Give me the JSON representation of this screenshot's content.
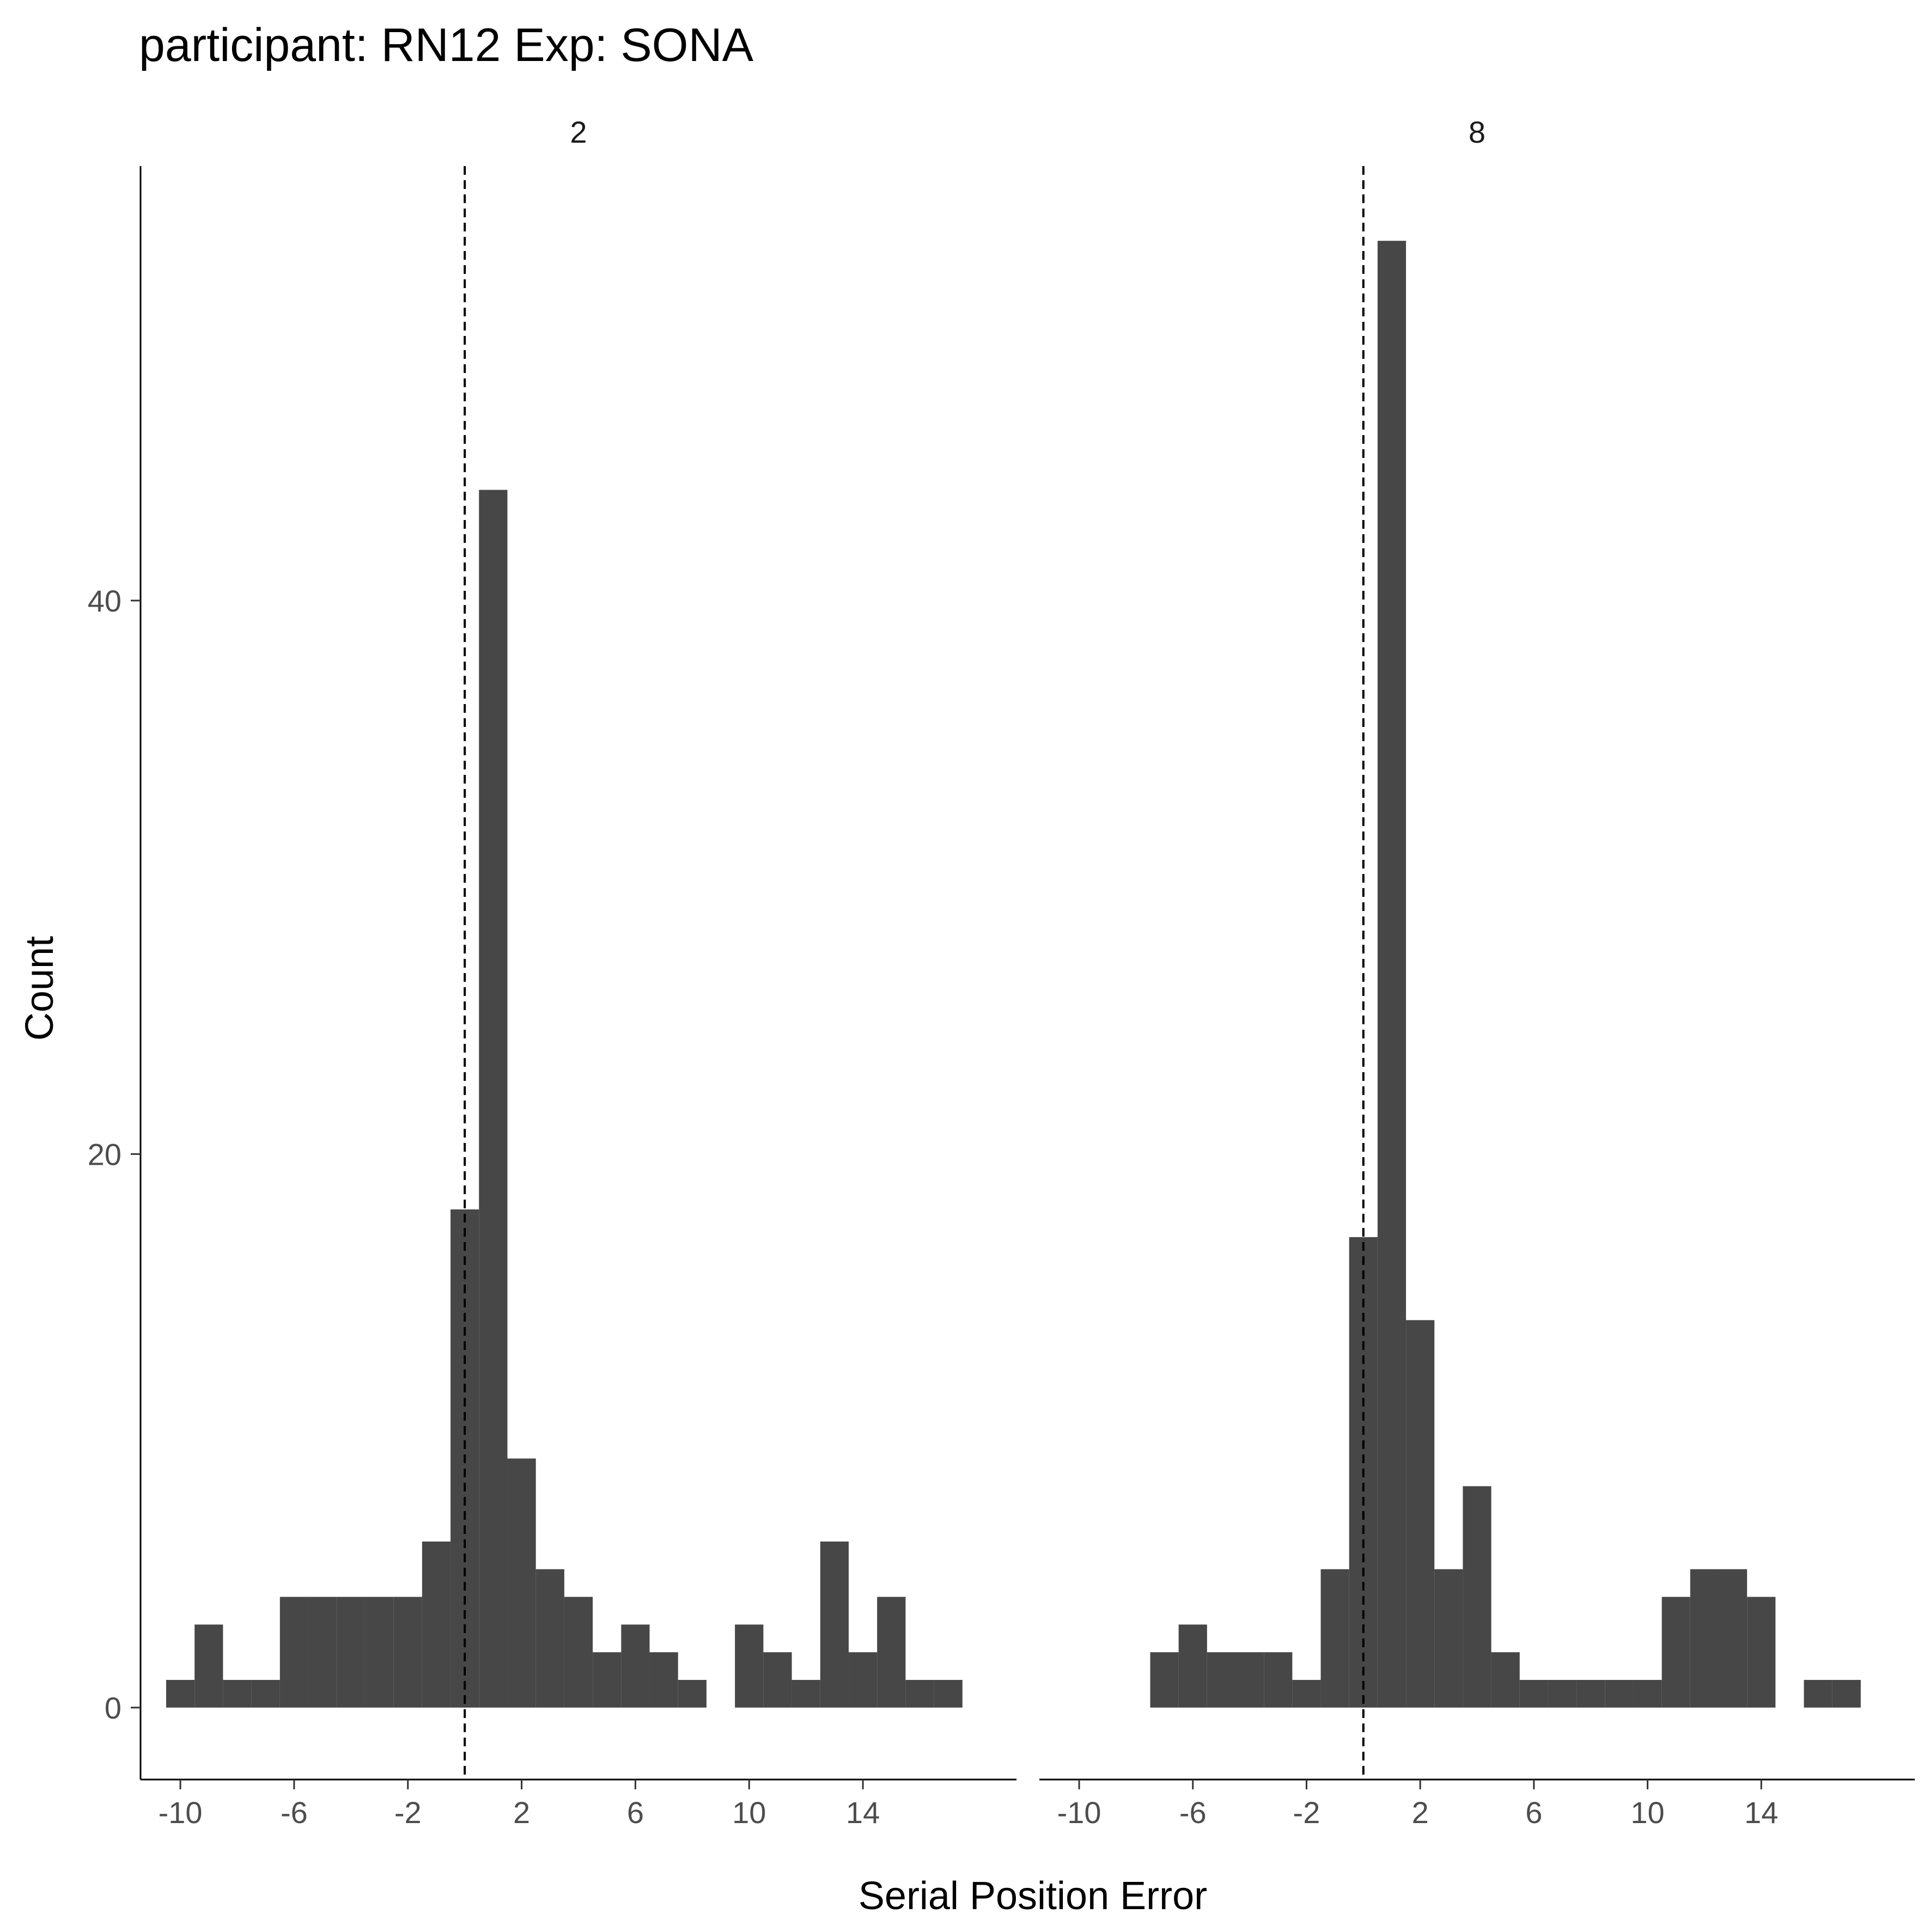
{
  "chart_data": {
    "type": "bar",
    "title": "participant: RN12 Exp: SONA",
    "xlabel": "Serial Position Error",
    "ylabel": "Count",
    "bar_color": "#474747",
    "reference_line": {
      "x": 0,
      "style": "dashed",
      "color": "#000000"
    },
    "xlim": [
      -11.4,
      19.4
    ],
    "ylim": [
      -2.6,
      55.7
    ],
    "x_ticks": [
      -10,
      -6,
      -2,
      2,
      6,
      10,
      14
    ],
    "x_tick_labels": [
      "-10",
      "-6",
      "-2",
      "2",
      "6",
      "10",
      "14"
    ],
    "y_ticks": [
      0,
      20,
      40
    ],
    "y_tick_labels": [
      "0",
      "20",
      "40"
    ],
    "grid": false,
    "bin_width": 1,
    "panels": [
      {
        "label": "2",
        "bins": [
          {
            "x": -10,
            "count": 1
          },
          {
            "x": -9,
            "count": 3
          },
          {
            "x": -8,
            "count": 1
          },
          {
            "x": -7,
            "count": 1
          },
          {
            "x": -6,
            "count": 4
          },
          {
            "x": -5,
            "count": 4
          },
          {
            "x": -4,
            "count": 4
          },
          {
            "x": -3,
            "count": 4
          },
          {
            "x": -2,
            "count": 4
          },
          {
            "x": -1,
            "count": 6
          },
          {
            "x": 0,
            "count": 18
          },
          {
            "x": 1,
            "count": 44
          },
          {
            "x": 2,
            "count": 9
          },
          {
            "x": 3,
            "count": 5
          },
          {
            "x": 4,
            "count": 4
          },
          {
            "x": 5,
            "count": 2
          },
          {
            "x": 6,
            "count": 3
          },
          {
            "x": 7,
            "count": 2
          },
          {
            "x": 8,
            "count": 1
          },
          {
            "x": 10,
            "count": 3
          },
          {
            "x": 11,
            "count": 2
          },
          {
            "x": 12,
            "count": 1
          },
          {
            "x": 13,
            "count": 6
          },
          {
            "x": 14,
            "count": 2
          },
          {
            "x": 15,
            "count": 4
          },
          {
            "x": 16,
            "count": 1
          },
          {
            "x": 17,
            "count": 1
          }
        ]
      },
      {
        "label": "8",
        "bins": [
          {
            "x": -7,
            "count": 2
          },
          {
            "x": -6,
            "count": 3
          },
          {
            "x": -5,
            "count": 2
          },
          {
            "x": -4,
            "count": 2
          },
          {
            "x": -3,
            "count": 2
          },
          {
            "x": -2,
            "count": 1
          },
          {
            "x": -1,
            "count": 5
          },
          {
            "x": 0,
            "count": 17
          },
          {
            "x": 1,
            "count": 53
          },
          {
            "x": 2,
            "count": 14
          },
          {
            "x": 3,
            "count": 5
          },
          {
            "x": 4,
            "count": 8
          },
          {
            "x": 5,
            "count": 2
          },
          {
            "x": 6,
            "count": 1
          },
          {
            "x": 7,
            "count": 1
          },
          {
            "x": 8,
            "count": 1
          },
          {
            "x": 9,
            "count": 1
          },
          {
            "x": 10,
            "count": 1
          },
          {
            "x": 11,
            "count": 4
          },
          {
            "x": 12,
            "count": 5
          },
          {
            "x": 13,
            "count": 5
          },
          {
            "x": 14,
            "count": 4
          },
          {
            "x": 16,
            "count": 1
          },
          {
            "x": 17,
            "count": 1
          }
        ]
      }
    ]
  }
}
